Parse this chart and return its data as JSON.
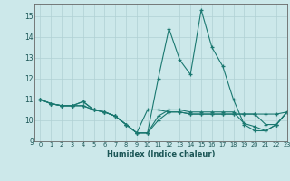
{
  "xlabel": "Humidex (Indice chaleur)",
  "bg_color": "#cce8ea",
  "grid_color": "#b0d0d4",
  "line_color": "#1a7870",
  "xlim": [
    -0.5,
    23
  ],
  "ylim": [
    9,
    15.6
  ],
  "yticks": [
    9,
    10,
    11,
    12,
    13,
    14,
    15
  ],
  "xticks": [
    0,
    1,
    2,
    3,
    4,
    5,
    6,
    7,
    8,
    9,
    10,
    11,
    12,
    13,
    14,
    15,
    16,
    17,
    18,
    19,
    20,
    21,
    22,
    23
  ],
  "series": [
    [
      11.0,
      10.8,
      10.7,
      10.7,
      10.9,
      10.5,
      10.4,
      10.2,
      9.8,
      9.4,
      9.4,
      12.0,
      14.4,
      12.9,
      12.2,
      15.3,
      13.5,
      12.6,
      11.0,
      9.8,
      9.5,
      9.5,
      9.8,
      10.4
    ],
    [
      11.0,
      10.8,
      10.7,
      10.7,
      10.7,
      10.5,
      10.4,
      10.2,
      9.8,
      9.4,
      10.5,
      10.5,
      10.4,
      10.4,
      10.3,
      10.3,
      10.3,
      10.3,
      10.3,
      10.3,
      10.3,
      10.3,
      10.3,
      10.4
    ],
    [
      11.0,
      10.8,
      10.7,
      10.7,
      10.9,
      10.5,
      10.4,
      10.2,
      9.8,
      9.4,
      9.4,
      10.2,
      10.5,
      10.5,
      10.4,
      10.4,
      10.4,
      10.4,
      10.4,
      9.85,
      9.7,
      9.5,
      9.8,
      10.4
    ],
    [
      11.0,
      10.8,
      10.7,
      10.7,
      10.7,
      10.5,
      10.4,
      10.2,
      9.8,
      9.4,
      9.4,
      10.0,
      10.4,
      10.4,
      10.3,
      10.3,
      10.3,
      10.3,
      10.3,
      10.3,
      10.3,
      9.8,
      9.8,
      10.4
    ]
  ]
}
